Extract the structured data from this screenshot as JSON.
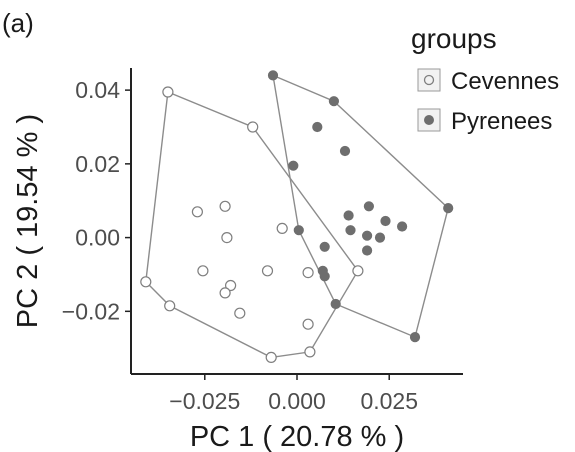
{
  "chart_data": {
    "type": "scatter",
    "panel_label": "(a)",
    "xlabel": "PC 1 ( 20.78 % )",
    "ylabel": "PC 2 ( 19.54 % )",
    "xlim": [
      -0.045,
      0.045
    ],
    "ylim": [
      -0.037,
      0.046
    ],
    "x_ticks": [
      -0.025,
      0.0,
      0.025
    ],
    "x_tick_labels": [
      "−0.025",
      "0.000",
      "0.025"
    ],
    "y_ticks": [
      -0.02,
      0.0,
      0.02,
      0.04
    ],
    "y_tick_labels": [
      "−0.02",
      "0.00",
      "0.02",
      "0.04"
    ],
    "grid": false,
    "legend": {
      "title": "groups",
      "position": "top-right"
    },
    "hull": true,
    "series": [
      {
        "name": "Cevennes",
        "marker": "open-circle",
        "color": "#7f7f7f",
        "points": [
          [
            -0.035,
            0.0395
          ],
          [
            -0.012,
            0.03
          ],
          [
            -0.041,
            -0.012
          ],
          [
            -0.0345,
            -0.0185
          ],
          [
            -0.027,
            0.007
          ],
          [
            -0.0195,
            0.0085
          ],
          [
            -0.019,
            0.0
          ],
          [
            -0.0255,
            -0.009
          ],
          [
            -0.018,
            -0.013
          ],
          [
            -0.0195,
            -0.015
          ],
          [
            -0.0155,
            -0.0205
          ],
          [
            -0.008,
            -0.009
          ],
          [
            -0.004,
            0.0025
          ],
          [
            -0.007,
            -0.0325
          ],
          [
            0.003,
            -0.0095
          ],
          [
            0.003,
            -0.0235
          ],
          [
            0.0035,
            -0.031
          ],
          [
            0.0165,
            -0.009
          ]
        ]
      },
      {
        "name": "Pyrenees",
        "marker": "filled-circle",
        "color": "#6e6e6e",
        "points": [
          [
            -0.0065,
            0.044
          ],
          [
            0.01,
            0.037
          ],
          [
            0.0055,
            0.03
          ],
          [
            0.013,
            0.0235
          ],
          [
            -0.001,
            0.0195
          ],
          [
            0.0005,
            0.002
          ],
          [
            0.014,
            0.006
          ],
          [
            0.0145,
            0.002
          ],
          [
            0.0195,
            0.0085
          ],
          [
            0.024,
            0.0045
          ],
          [
            0.0285,
            0.003
          ],
          [
            0.019,
            0.0005
          ],
          [
            0.0225,
            0.0
          ],
          [
            0.0075,
            -0.0025
          ],
          [
            0.019,
            -0.0035
          ],
          [
            0.007,
            -0.009
          ],
          [
            0.0075,
            -0.0105
          ],
          [
            0.0105,
            -0.018
          ],
          [
            0.041,
            0.008
          ],
          [
            0.032,
            -0.027
          ]
        ]
      }
    ]
  }
}
